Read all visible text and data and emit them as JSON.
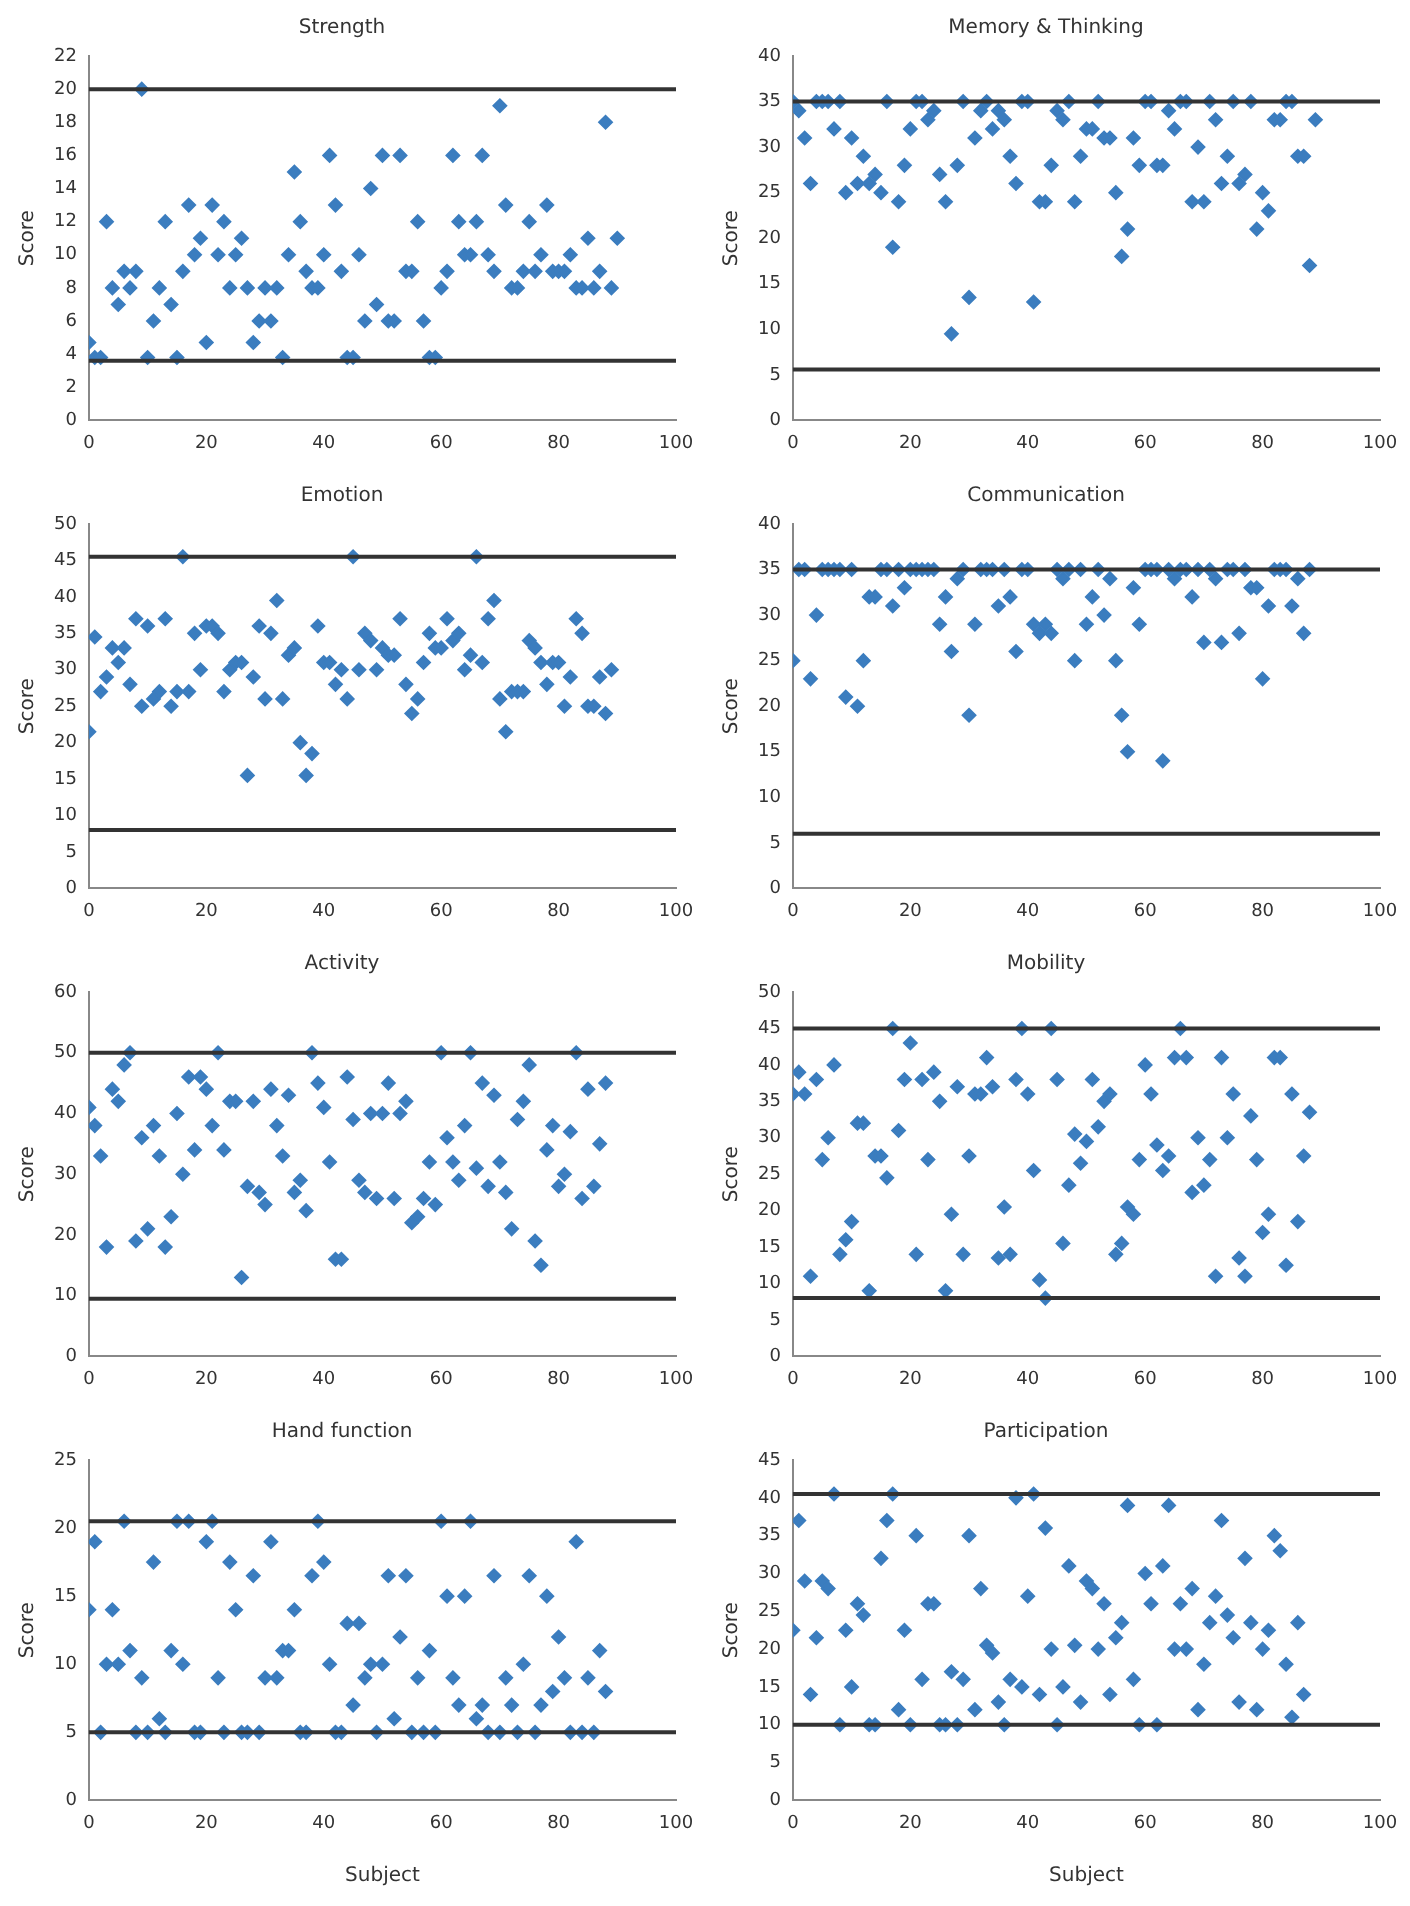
{
  "chart_data": [
    {
      "type": "scatter",
      "title": "Strength",
      "ylabel": "Score",
      "xlim": [
        0,
        100
      ],
      "xticks": [
        0,
        20,
        40,
        60,
        80,
        100
      ],
      "ylim": [
        0,
        22
      ],
      "yticks": [
        0,
        2,
        4,
        6,
        8,
        10,
        12,
        14,
        16,
        18,
        20,
        22
      ],
      "marker": "diamond",
      "legend": false,
      "grid": false,
      "ref_lines": [
        {
          "axis": "y",
          "value": 20,
          "color": "#333333"
        },
        {
          "axis": "y",
          "value": 3.6,
          "color": "#333333"
        }
      ],
      "series": [
        {
          "color": "#3b7dbf",
          "x": [
            0,
            1,
            2,
            3,
            4,
            5,
            6,
            7,
            8,
            9,
            10,
            11,
            12,
            13,
            14,
            15,
            16,
            17,
            18,
            19,
            20,
            21,
            22,
            23,
            24,
            25,
            26,
            27,
            28,
            29,
            30,
            31,
            32,
            33,
            34,
            35,
            36,
            37,
            38,
            39,
            40,
            41,
            42,
            43,
            44,
            45,
            46,
            47,
            48,
            49,
            50,
            51,
            52,
            53,
            54,
            55,
            56,
            57,
            58,
            59,
            60,
            61,
            62,
            63,
            64,
            65,
            66,
            67,
            68,
            69,
            70,
            71,
            72,
            73,
            74,
            75,
            76,
            77,
            78,
            79,
            80,
            81,
            82,
            83,
            84,
            85,
            86,
            87,
            88,
            89,
            90
          ],
          "values": [
            4.7,
            3.8,
            3.8,
            12,
            8,
            7,
            9,
            8,
            9,
            20,
            3.8,
            6,
            8,
            12,
            7,
            3.8,
            9,
            13,
            10,
            11,
            4.7,
            13,
            10,
            12,
            8,
            10,
            11,
            8,
            4.7,
            6,
            8,
            6,
            8,
            3.8,
            10,
            15,
            12,
            9,
            8,
            8,
            10,
            16,
            13,
            9,
            3.8,
            3.8,
            10,
            6,
            14,
            7,
            16,
            6,
            6,
            16,
            9,
            9,
            12,
            6,
            3.8,
            3.8,
            8,
            9,
            16,
            12,
            10,
            10,
            12,
            16,
            10,
            9,
            19,
            13,
            8,
            8,
            9,
            12,
            9,
            10,
            13,
            9,
            9,
            9,
            10,
            8,
            8,
            11,
            8,
            9,
            18,
            8,
            11
          ]
        }
      ]
    },
    {
      "type": "scatter",
      "title": "Memory & Thinking",
      "ylabel": "Score",
      "xlim": [
        0,
        100
      ],
      "xticks": [
        0,
        20,
        40,
        60,
        80,
        100
      ],
      "ylim": [
        0,
        40
      ],
      "yticks": [
        0,
        5,
        10,
        15,
        20,
        25,
        30,
        35,
        40
      ],
      "marker": "diamond",
      "legend": false,
      "grid": false,
      "ref_lines": [
        {
          "axis": "y",
          "value": 35,
          "color": "#333333"
        },
        {
          "axis": "y",
          "value": 5.6,
          "color": "#333333"
        }
      ],
      "series": [
        {
          "color": "#3b7dbf",
          "x": [
            0,
            1,
            2,
            3,
            4,
            5,
            6,
            7,
            8,
            9,
            10,
            11,
            12,
            13,
            14,
            15,
            16,
            17,
            18,
            19,
            20,
            21,
            22,
            23,
            24,
            25,
            26,
            27,
            28,
            29,
            30,
            31,
            32,
            33,
            34,
            35,
            36,
            37,
            38,
            39,
            40,
            41,
            42,
            43,
            44,
            45,
            46,
            47,
            48,
            49,
            50,
            51,
            52,
            53,
            54,
            55,
            56,
            57,
            58,
            59,
            60,
            61,
            62,
            63,
            64,
            65,
            66,
            67,
            68,
            69,
            70,
            71,
            72,
            73,
            74,
            75,
            76,
            77,
            78,
            79,
            80,
            81,
            82,
            83,
            84,
            85,
            86,
            87,
            88,
            89
          ],
          "values": [
            35,
            34,
            31,
            26,
            35,
            35,
            35,
            32,
            35,
            25,
            31,
            26,
            29,
            26,
            27,
            25,
            35,
            19,
            24,
            28,
            32,
            35,
            35,
            33,
            34,
            27,
            24,
            9.5,
            28,
            35,
            13.5,
            31,
            34,
            35,
            32,
            34,
            33,
            29,
            26,
            35,
            35,
            13,
            24,
            24,
            28,
            34,
            33,
            35,
            24,
            29,
            32,
            32,
            35,
            31,
            31,
            25,
            18,
            21,
            31,
            28,
            35,
            35,
            28,
            28,
            34,
            32,
            35,
            35,
            24,
            30,
            24,
            35,
            33,
            26,
            29,
            35,
            26,
            27,
            35,
            21,
            25,
            23,
            33,
            33,
            35,
            35,
            29,
            29,
            17,
            33
          ]
        }
      ]
    },
    {
      "type": "scatter",
      "title": "Emotion",
      "ylabel": "Score",
      "xlim": [
        0,
        100
      ],
      "xticks": [
        0,
        20,
        40,
        60,
        80,
        100
      ],
      "ylim": [
        0,
        50
      ],
      "yticks": [
        0,
        5,
        10,
        15,
        20,
        25,
        30,
        35,
        40,
        45,
        50
      ],
      "marker": "diamond",
      "legend": false,
      "grid": false,
      "ref_lines": [
        {
          "axis": "y",
          "value": 45.5,
          "color": "#333333"
        },
        {
          "axis": "y",
          "value": 8,
          "color": "#333333"
        }
      ],
      "series": [
        {
          "color": "#3b7dbf",
          "x": [
            0,
            1,
            2,
            3,
            4,
            5,
            6,
            7,
            8,
            9,
            10,
            11,
            12,
            13,
            14,
            15,
            16,
            17,
            18,
            19,
            20,
            21,
            22,
            23,
            24,
            25,
            26,
            27,
            28,
            29,
            30,
            31,
            32,
            33,
            34,
            35,
            36,
            37,
            38,
            39,
            40,
            41,
            42,
            43,
            44,
            45,
            46,
            47,
            48,
            49,
            50,
            51,
            52,
            53,
            54,
            55,
            56,
            57,
            58,
            59,
            60,
            61,
            62,
            63,
            64,
            65,
            66,
            67,
            68,
            69,
            70,
            71,
            72,
            73,
            74,
            75,
            76,
            77,
            78,
            79,
            80,
            81,
            82,
            83,
            84,
            85,
            86,
            87,
            88,
            89
          ],
          "values": [
            21.5,
            34.5,
            27,
            29,
            33,
            31,
            33,
            28,
            37,
            25,
            36,
            26,
            27,
            37,
            25,
            27,
            45.5,
            27,
            35,
            30,
            36,
            36,
            35,
            27,
            30,
            31,
            31,
            15.5,
            29,
            36,
            26,
            35,
            39.5,
            26,
            32,
            33,
            20,
            15.5,
            18.5,
            36,
            31,
            31,
            28,
            30,
            26,
            45.5,
            30,
            35,
            34,
            30,
            33,
            32,
            32,
            37,
            28,
            24,
            26,
            31,
            35,
            33,
            33,
            37,
            34,
            35,
            30,
            32,
            45.5,
            31,
            37,
            39.5,
            26,
            21.5,
            27,
            27,
            27,
            34,
            33,
            31,
            28,
            31,
            31,
            25,
            29,
            37,
            35,
            25,
            25,
            29,
            24,
            30
          ]
        }
      ]
    },
    {
      "type": "scatter",
      "title": "Communication",
      "ylabel": "Score",
      "xlim": [
        0,
        100
      ],
      "xticks": [
        0,
        20,
        40,
        60,
        80,
        100
      ],
      "ylim": [
        0,
        40
      ],
      "yticks": [
        0,
        5,
        10,
        15,
        20,
        25,
        30,
        35,
        40
      ],
      "marker": "diamond",
      "legend": false,
      "grid": false,
      "ref_lines": [
        {
          "axis": "y",
          "value": 35,
          "color": "#333333"
        },
        {
          "axis": "y",
          "value": 6,
          "color": "#333333"
        }
      ],
      "series": [
        {
          "color": "#3b7dbf",
          "x": [
            0,
            1,
            2,
            3,
            4,
            5,
            6,
            7,
            8,
            9,
            10,
            11,
            12,
            13,
            14,
            15,
            16,
            17,
            18,
            19,
            20,
            21,
            22,
            23,
            24,
            25,
            26,
            27,
            28,
            29,
            30,
            31,
            32,
            33,
            34,
            35,
            36,
            37,
            38,
            39,
            40,
            41,
            42,
            43,
            44,
            45,
            46,
            47,
            48,
            49,
            50,
            51,
            52,
            53,
            54,
            55,
            56,
            57,
            58,
            59,
            60,
            61,
            62,
            63,
            64,
            65,
            66,
            67,
            68,
            69,
            70,
            71,
            72,
            73,
            74,
            75,
            76,
            77,
            78,
            79,
            80,
            81,
            82,
            83,
            84,
            85,
            86,
            87,
            88
          ],
          "values": [
            25,
            35,
            35,
            23,
            30,
            35,
            35,
            35,
            35,
            21,
            35,
            20,
            25,
            32,
            32,
            35,
            35,
            31,
            35,
            33,
            35,
            35,
            35,
            35,
            35,
            29,
            32,
            26,
            34,
            35,
            19,
            29,
            35,
            35,
            35,
            31,
            35,
            32,
            26,
            35,
            35,
            29,
            28,
            29,
            28,
            35,
            34,
            35,
            25,
            35,
            29,
            32,
            35,
            30,
            34,
            25,
            19,
            15,
            33,
            29,
            35,
            35,
            35,
            14,
            35,
            34,
            35,
            35,
            32,
            35,
            27,
            35,
            34,
            27,
            35,
            35,
            28,
            35,
            33,
            33,
            23,
            31,
            35,
            35,
            35,
            31,
            34,
            28,
            35
          ]
        }
      ]
    },
    {
      "type": "scatter",
      "title": "Activity",
      "ylabel": "Score",
      "xlim": [
        0,
        100
      ],
      "xticks": [
        0,
        20,
        40,
        60,
        80,
        100
      ],
      "ylim": [
        0,
        60
      ],
      "yticks": [
        0,
        10,
        20,
        30,
        40,
        50,
        60
      ],
      "marker": "diamond",
      "legend": false,
      "grid": false,
      "ref_lines": [
        {
          "axis": "y",
          "value": 50,
          "color": "#333333"
        },
        {
          "axis": "y",
          "value": 9.5,
          "color": "#333333"
        }
      ],
      "series": [
        {
          "color": "#3b7dbf",
          "x": [
            0,
            1,
            2,
            3,
            4,
            5,
            6,
            7,
            8,
            9,
            10,
            11,
            12,
            13,
            14,
            15,
            16,
            17,
            18,
            19,
            20,
            21,
            22,
            23,
            24,
            25,
            26,
            27,
            28,
            29,
            30,
            31,
            32,
            33,
            34,
            35,
            36,
            37,
            38,
            39,
            40,
            41,
            42,
            43,
            44,
            45,
            46,
            47,
            48,
            49,
            50,
            51,
            52,
            53,
            54,
            55,
            56,
            57,
            58,
            59,
            60,
            61,
            62,
            63,
            64,
            65,
            66,
            67,
            68,
            69,
            70,
            71,
            72,
            73,
            74,
            75,
            76,
            77,
            78,
            79,
            80,
            81,
            82,
            83,
            84,
            85,
            86,
            87,
            88
          ],
          "values": [
            41,
            38,
            33,
            18,
            44,
            42,
            48,
            50,
            19,
            36,
            21,
            38,
            33,
            18,
            23,
            40,
            30,
            46,
            34,
            46,
            44,
            38,
            50,
            34,
            42,
            42,
            13,
            28,
            42,
            27,
            25,
            44,
            38,
            33,
            43,
            27,
            29,
            24,
            50,
            45,
            41,
            32,
            16,
            16,
            46,
            39,
            29,
            27,
            40,
            26,
            40,
            45,
            26,
            40,
            42,
            22,
            23,
            26,
            32,
            25,
            50,
            36,
            32,
            29,
            38,
            50,
            31,
            45,
            28,
            43,
            32,
            27,
            21,
            39,
            42,
            48,
            19,
            15,
            34,
            38,
            28,
            30,
            37,
            50,
            26,
            44,
            28,
            35,
            45
          ]
        }
      ]
    },
    {
      "type": "scatter",
      "title": "Mobility",
      "ylabel": "Score",
      "xlim": [
        0,
        100
      ],
      "xticks": [
        0,
        20,
        40,
        60,
        80,
        100
      ],
      "ylim": [
        0,
        50
      ],
      "yticks": [
        0,
        5,
        10,
        15,
        20,
        25,
        30,
        35,
        40,
        45,
        50
      ],
      "marker": "diamond",
      "legend": false,
      "grid": false,
      "ref_lines": [
        {
          "axis": "y",
          "value": 45,
          "color": "#333333"
        },
        {
          "axis": "y",
          "value": 8,
          "color": "#333333"
        }
      ],
      "series": [
        {
          "color": "#3b7dbf",
          "x": [
            0,
            1,
            2,
            3,
            4,
            5,
            6,
            7,
            8,
            9,
            10,
            11,
            12,
            13,
            14,
            15,
            16,
            17,
            18,
            19,
            20,
            21,
            22,
            23,
            24,
            25,
            26,
            27,
            28,
            29,
            30,
            31,
            32,
            33,
            34,
            35,
            36,
            37,
            38,
            39,
            40,
            41,
            42,
            43,
            44,
            45,
            46,
            47,
            48,
            49,
            50,
            51,
            52,
            53,
            54,
            55,
            56,
            57,
            58,
            59,
            60,
            61,
            62,
            63,
            64,
            65,
            66,
            67,
            68,
            69,
            70,
            71,
            72,
            73,
            74,
            75,
            76,
            77,
            78,
            79,
            80,
            81,
            82,
            83,
            84,
            85,
            86,
            87,
            88
          ],
          "values": [
            36,
            39,
            36,
            11,
            38,
            27,
            30,
            40,
            14,
            16,
            18.5,
            32,
            32,
            9,
            27.5,
            27.5,
            24.5,
            45,
            31,
            38,
            43,
            14,
            38,
            27,
            39,
            35,
            9,
            19.5,
            37,
            14,
            27.5,
            36,
            36,
            41,
            37,
            13.5,
            20.5,
            14,
            38,
            45,
            36,
            25.5,
            10.5,
            8,
            45,
            38,
            15.5,
            23.5,
            30.5,
            26.5,
            29.5,
            38,
            31.5,
            35,
            36,
            14,
            15.5,
            20.5,
            19.5,
            27,
            40,
            36,
            29,
            25.5,
            27.5,
            41,
            45,
            41,
            22.5,
            30,
            23.5,
            27,
            11,
            41,
            30,
            36,
            13.5,
            11,
            33,
            27,
            17,
            19.5,
            41,
            41,
            12.5,
            36,
            18.5,
            27.5,
            33.5
          ]
        }
      ]
    },
    {
      "type": "scatter",
      "title": "Hand function",
      "ylabel": "Score",
      "xlabel": "Subject",
      "xlim": [
        0,
        100
      ],
      "xticks": [
        0,
        20,
        40,
        60,
        80,
        100
      ],
      "ylim": [
        0,
        25
      ],
      "yticks": [
        0,
        5,
        10,
        15,
        20,
        25
      ],
      "marker": "diamond",
      "legend": false,
      "grid": false,
      "ref_lines": [
        {
          "axis": "y",
          "value": 20.5,
          "color": "#333333"
        },
        {
          "axis": "y",
          "value": 5,
          "color": "#333333"
        }
      ],
      "series": [
        {
          "color": "#3b7dbf",
          "x": [
            0,
            1,
            2,
            3,
            4,
            5,
            6,
            7,
            8,
            9,
            10,
            11,
            12,
            13,
            14,
            15,
            16,
            17,
            18,
            19,
            20,
            21,
            22,
            23,
            24,
            25,
            26,
            27,
            28,
            29,
            30,
            31,
            32,
            33,
            34,
            35,
            36,
            37,
            38,
            39,
            40,
            41,
            42,
            43,
            44,
            45,
            46,
            47,
            48,
            49,
            50,
            51,
            52,
            53,
            54,
            55,
            56,
            57,
            58,
            59,
            60,
            61,
            62,
            63,
            64,
            65,
            66,
            67,
            68,
            69,
            70,
            71,
            72,
            73,
            74,
            75,
            76,
            77,
            78,
            79,
            80,
            81,
            82,
            83,
            84,
            85,
            86,
            87,
            88
          ],
          "values": [
            14,
            19,
            5,
            10,
            14,
            10,
            20.5,
            11,
            5,
            9,
            5,
            17.5,
            6,
            5,
            11,
            20.5,
            10,
            20.5,
            5,
            5,
            19,
            20.5,
            9,
            5,
            17.5,
            14,
            5,
            5,
            16.5,
            5,
            9,
            19,
            9,
            11,
            11,
            14,
            5,
            5,
            16.5,
            20.5,
            17.5,
            10,
            5,
            5,
            13,
            7,
            13,
            9,
            10,
            5,
            10,
            16.5,
            6,
            12,
            16.5,
            5,
            9,
            5,
            11,
            5,
            20.5,
            15,
            9,
            7,
            15,
            20.5,
            6,
            7,
            5,
            16.5,
            5,
            9,
            7,
            5,
            10,
            16.5,
            5,
            7,
            15,
            8,
            12,
            9,
            5,
            19,
            5,
            9,
            5,
            11,
            8
          ]
        }
      ]
    },
    {
      "type": "scatter",
      "title": "Participation",
      "ylabel": "Score",
      "xlabel": "Subject",
      "xlim": [
        0,
        100
      ],
      "xticks": [
        0,
        20,
        40,
        60,
        80,
        100
      ],
      "ylim": [
        0,
        45
      ],
      "yticks": [
        0,
        5,
        10,
        15,
        20,
        25,
        30,
        35,
        40,
        45
      ],
      "marker": "diamond",
      "legend": false,
      "grid": false,
      "ref_lines": [
        {
          "axis": "y",
          "value": 40.5,
          "color": "#333333"
        },
        {
          "axis": "y",
          "value": 10,
          "color": "#333333"
        }
      ],
      "series": [
        {
          "color": "#3b7dbf",
          "x": [
            0,
            1,
            2,
            3,
            4,
            5,
            6,
            7,
            8,
            9,
            10,
            11,
            12,
            13,
            14,
            15,
            16,
            17,
            18,
            19,
            20,
            21,
            22,
            23,
            24,
            25,
            26,
            27,
            28,
            29,
            30,
            31,
            32,
            33,
            34,
            35,
            36,
            37,
            38,
            39,
            40,
            41,
            42,
            43,
            44,
            45,
            46,
            47,
            48,
            49,
            50,
            51,
            52,
            53,
            54,
            55,
            56,
            57,
            58,
            59,
            60,
            61,
            62,
            63,
            64,
            65,
            66,
            67,
            68,
            69,
            70,
            71,
            72,
            73,
            74,
            75,
            76,
            77,
            78,
            79,
            80,
            81,
            82,
            83,
            84,
            85,
            86,
            87
          ],
          "values": [
            22.5,
            37,
            29,
            14,
            21.5,
            29,
            28,
            40.5,
            10,
            22.5,
            15,
            26,
            24.5,
            10,
            10,
            32,
            37,
            40.5,
            12,
            22.5,
            10,
            35,
            16,
            26,
            26,
            10,
            10,
            17,
            10,
            16,
            35,
            12,
            28,
            20.5,
            19.5,
            13,
            10,
            16,
            40,
            15,
            27,
            40.5,
            14,
            36,
            20,
            10,
            15,
            31,
            20.5,
            13,
            29,
            28,
            20,
            26,
            14,
            21.5,
            23.5,
            39,
            16,
            10,
            30,
            26,
            10,
            31,
            39,
            20,
            26,
            20,
            28,
            12,
            18,
            23.5,
            27,
            37,
            24.5,
            21.5,
            13,
            32,
            23.5,
            12,
            20,
            22.5,
            35,
            33,
            18,
            11,
            23.5,
            14
          ]
        }
      ]
    }
  ]
}
